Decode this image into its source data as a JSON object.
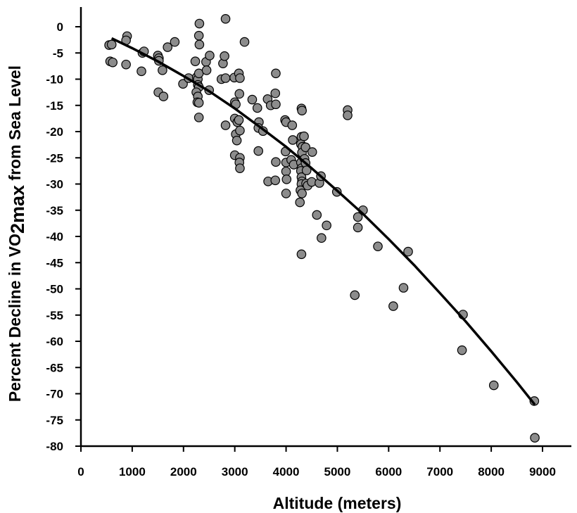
{
  "chart_data": {
    "type": "scatter",
    "xlabel": "Altitude (meters)",
    "ylabel_parts": [
      "Percent Decline in VO",
      "2max",
      " from Sea Level"
    ],
    "xlim": [
      0,
      9000
    ],
    "ylim": [
      -80,
      0
    ],
    "x_ticks": [
      0,
      1000,
      2000,
      3000,
      4000,
      5000,
      6000,
      7000,
      8000,
      9000
    ],
    "y_ticks": [
      0,
      -5,
      -10,
      -15,
      -20,
      -25,
      -30,
      -35,
      -40,
      -45,
      -50,
      -55,
      -60,
      -65,
      -70,
      -75,
      -80
    ],
    "grid": false,
    "legend": "none",
    "colors": {
      "point_fill": "#8c8c8c",
      "point_stroke": "#000000",
      "line": "#000000"
    },
    "points": [
      [
        550,
        -3.5
      ],
      [
        600,
        -3.4
      ],
      [
        570,
        -6.6
      ],
      [
        620,
        -6.8
      ],
      [
        900,
        -1.8
      ],
      [
        880,
        -2.6
      ],
      [
        880,
        -7.2
      ],
      [
        1180,
        -8.5
      ],
      [
        1200,
        -5.0
      ],
      [
        1230,
        -4.7
      ],
      [
        1500,
        -5.5
      ],
      [
        1520,
        -6.0
      ],
      [
        1520,
        -6.5
      ],
      [
        1510,
        -12.5
      ],
      [
        1590,
        -8.3
      ],
      [
        1610,
        -13.3
      ],
      [
        1690,
        -3.9
      ],
      [
        1830,
        -2.9
      ],
      [
        1990,
        -10.9
      ],
      [
        2100,
        -9.8
      ],
      [
        2230,
        -6.6
      ],
      [
        2260,
        -9.6
      ],
      [
        2280,
        -10.0
      ],
      [
        2300,
        -8.9
      ],
      [
        2280,
        -11.1
      ],
      [
        2300,
        -11.5
      ],
      [
        2250,
        -12.5
      ],
      [
        2280,
        -13.3
      ],
      [
        2270,
        -14.4
      ],
      [
        2300,
        -14.5
      ],
      [
        2300,
        -17.3
      ],
      [
        2310,
        0.6
      ],
      [
        2300,
        -1.7
      ],
      [
        2310,
        -3.4
      ],
      [
        2440,
        -6.7
      ],
      [
        2450,
        -8.3
      ],
      [
        2510,
        -5.5
      ],
      [
        2500,
        -12.1
      ],
      [
        2740,
        -10.0
      ],
      [
        2770,
        -7.0
      ],
      [
        2800,
        -5.6
      ],
      [
        2820,
        1.5
      ],
      [
        2820,
        -9.8
      ],
      [
        2820,
        -18.8
      ],
      [
        2990,
        -9.7
      ],
      [
        3000,
        -14.4
      ],
      [
        3020,
        -14.8
      ],
      [
        3000,
        -17.5
      ],
      [
        3050,
        -18.2
      ],
      [
        3020,
        -20.5
      ],
      [
        3040,
        -21.7
      ],
      [
        3000,
        -24.5
      ],
      [
        3080,
        -8.9
      ],
      [
        3100,
        -9.8
      ],
      [
        3090,
        -12.8
      ],
      [
        3080,
        -17.8
      ],
      [
        3100,
        -19.8
      ],
      [
        3100,
        -25.0
      ],
      [
        3090,
        -25.9
      ],
      [
        3100,
        -27.0
      ],
      [
        3190,
        -2.9
      ],
      [
        3340,
        -13.9
      ],
      [
        3440,
        -15.5
      ],
      [
        3470,
        -18.2
      ],
      [
        3460,
        -19.3
      ],
      [
        3460,
        -23.7
      ],
      [
        3550,
        -19.9
      ],
      [
        3640,
        -13.8
      ],
      [
        3650,
        -29.5
      ],
      [
        3700,
        -15.0
      ],
      [
        3800,
        -8.9
      ],
      [
        3790,
        -12.7
      ],
      [
        3800,
        -14.8
      ],
      [
        3800,
        -25.8
      ],
      [
        3790,
        -29.3
      ],
      [
        3980,
        -17.8
      ],
      [
        4000,
        -18.2
      ],
      [
        3990,
        -23.8
      ],
      [
        4000,
        -25.9
      ],
      [
        4000,
        -27.6
      ],
      [
        4010,
        -29.1
      ],
      [
        4000,
        -31.8
      ],
      [
        4120,
        -18.8
      ],
      [
        4130,
        -21.6
      ],
      [
        4100,
        -25.4
      ],
      [
        4150,
        -26.3
      ],
      [
        4300,
        -15.6
      ],
      [
        4310,
        -16.0
      ],
      [
        4300,
        -21.0
      ],
      [
        4290,
        -22.4
      ],
      [
        4320,
        -22.9
      ],
      [
        4310,
        -24.0
      ],
      [
        4290,
        -25.9
      ],
      [
        4300,
        -27.0
      ],
      [
        4290,
        -27.5
      ],
      [
        4300,
        -28.7
      ],
      [
        4310,
        -29.5
      ],
      [
        4300,
        -30.0
      ],
      [
        4280,
        -31.2
      ],
      [
        4310,
        -31.8
      ],
      [
        4270,
        -33.5
      ],
      [
        4300,
        -43.4
      ],
      [
        4350,
        -20.9
      ],
      [
        4380,
        -23.0
      ],
      [
        4360,
        -25.2
      ],
      [
        4380,
        -26.0
      ],
      [
        4400,
        -27.4
      ],
      [
        4390,
        -29.9
      ],
      [
        4420,
        -30.3
      ],
      [
        4510,
        -23.9
      ],
      [
        4500,
        -29.6
      ],
      [
        4650,
        -29.8
      ],
      [
        4680,
        -28.5
      ],
      [
        4690,
        -40.3
      ],
      [
        4790,
        -37.9
      ],
      [
        4600,
        -35.9
      ],
      [
        4990,
        -31.5
      ],
      [
        5200,
        -15.9
      ],
      [
        5200,
        -16.9
      ],
      [
        5340,
        -51.2
      ],
      [
        5400,
        -36.3
      ],
      [
        5400,
        -38.3
      ],
      [
        5500,
        -35.0
      ],
      [
        5790,
        -41.9
      ],
      [
        6090,
        -53.3
      ],
      [
        6290,
        -49.8
      ],
      [
        6380,
        -42.9
      ],
      [
        7430,
        -61.7
      ],
      [
        7450,
        -54.9
      ],
      [
        8050,
        -68.4
      ],
      [
        8840,
        -71.4
      ],
      [
        8850,
        -78.4
      ]
    ],
    "fit_curve_x": [
      600,
      1000,
      1500,
      2000,
      2500,
      3000,
      3500,
      4000,
      4500,
      5000,
      5500,
      6000,
      6500,
      7000,
      7500,
      8000,
      8500,
      8850
    ],
    "fit_curve_y": [
      -2.2,
      -4.1,
      -6.6,
      -9.4,
      -12.3,
      -15.6,
      -19.2,
      -22.9,
      -27.0,
      -31.3,
      -35.7,
      -40.5,
      -45.5,
      -50.8,
      -56.2,
      -61.9,
      -67.8,
      -72.1
    ]
  }
}
